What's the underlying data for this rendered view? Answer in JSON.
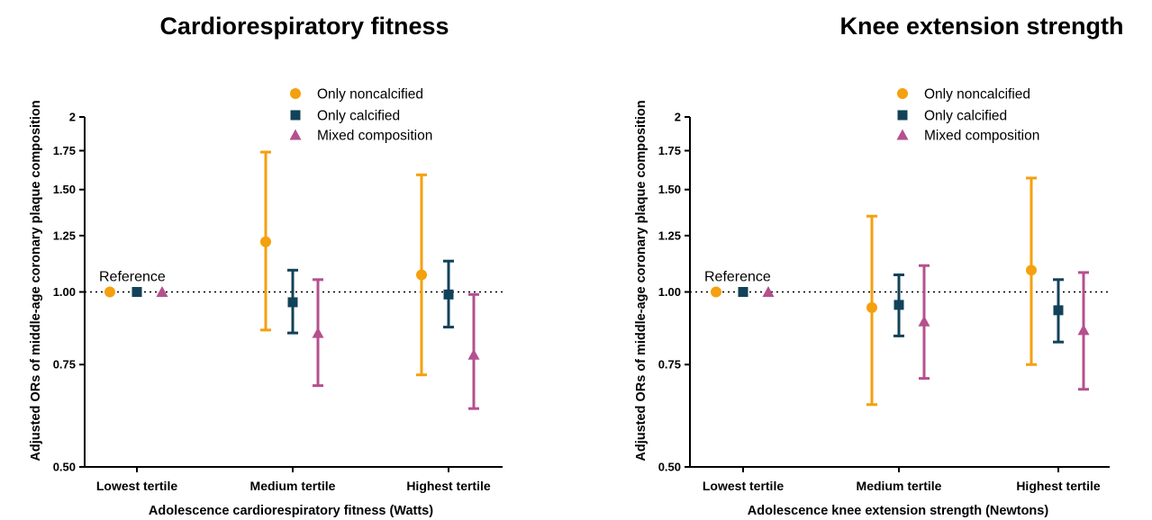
{
  "chart_data": [
    {
      "type": "scatter",
      "title": "Cardiorespiratory fitness",
      "xlabel": "Adolescence cardiorespiratory fitness (Watts)",
      "ylabel": "Adjusted ORs of middle-age coronary plaque composition",
      "categories": [
        "Lowest tertile",
        "Medium tertile",
        "Highest tertile"
      ],
      "yscale": "log",
      "ylim": [
        0.5,
        2
      ],
      "yticks": [
        0.5,
        0.75,
        1.0,
        1.25,
        1.5,
        1.75,
        2
      ],
      "ytick_labels": [
        "0.50",
        "0.75",
        "1.00",
        "1.25",
        "1.50",
        "1.75",
        "2"
      ],
      "reference_line": 1.0,
      "annotation": "Reference",
      "legend_position": "top-center",
      "series": [
        {
          "name": "Only noncalcified",
          "marker": "circle",
          "color": "#F5A00F",
          "values": [
            1.0,
            1.22,
            1.07
          ],
          "lower": [
            null,
            0.86,
            0.72
          ],
          "upper": [
            null,
            1.74,
            1.59
          ]
        },
        {
          "name": "Only calcified",
          "marker": "square",
          "color": "#12425A",
          "values": [
            1.0,
            0.96,
            0.99
          ],
          "lower": [
            null,
            0.85,
            0.87
          ],
          "upper": [
            null,
            1.09,
            1.13
          ]
        },
        {
          "name": "Mixed composition",
          "marker": "triangle",
          "color": "#B5508E",
          "values": [
            1.0,
            0.85,
            0.78
          ],
          "lower": [
            null,
            0.69,
            0.63
          ],
          "upper": [
            null,
            1.05,
            0.99
          ]
        }
      ]
    },
    {
      "type": "scatter",
      "title": "Knee extension strength",
      "xlabel": "Adolescence knee extension strength (Newtons)",
      "ylabel": "Adjusted ORs of middle-age coronary plaque composition",
      "categories": [
        "Lowest tertile",
        "Medium tertile",
        "Highest tertile"
      ],
      "yscale": "log",
      "ylim": [
        0.5,
        2
      ],
      "yticks": [
        0.5,
        0.75,
        1.0,
        1.25,
        1.5,
        1.75,
        2
      ],
      "ytick_labels": [
        "0.50",
        "0.75",
        "1.00",
        "1.25",
        "1.50",
        "1.75",
        "2"
      ],
      "reference_line": 1.0,
      "annotation": "Reference",
      "legend_position": "top-center",
      "series": [
        {
          "name": "Only noncalcified",
          "marker": "circle",
          "color": "#F5A00F",
          "values": [
            1.0,
            0.94,
            1.09
          ],
          "lower": [
            null,
            0.64,
            0.75
          ],
          "upper": [
            null,
            1.35,
            1.57
          ]
        },
        {
          "name": "Only calcified",
          "marker": "square",
          "color": "#12425A",
          "values": [
            1.0,
            0.95,
            0.93
          ],
          "lower": [
            null,
            0.84,
            0.82
          ],
          "upper": [
            null,
            1.07,
            1.05
          ]
        },
        {
          "name": "Mixed composition",
          "marker": "triangle",
          "color": "#B5508E",
          "values": [
            1.0,
            0.89,
            0.86
          ],
          "lower": [
            null,
            0.71,
            0.68
          ],
          "upper": [
            null,
            1.11,
            1.08
          ]
        }
      ]
    }
  ]
}
